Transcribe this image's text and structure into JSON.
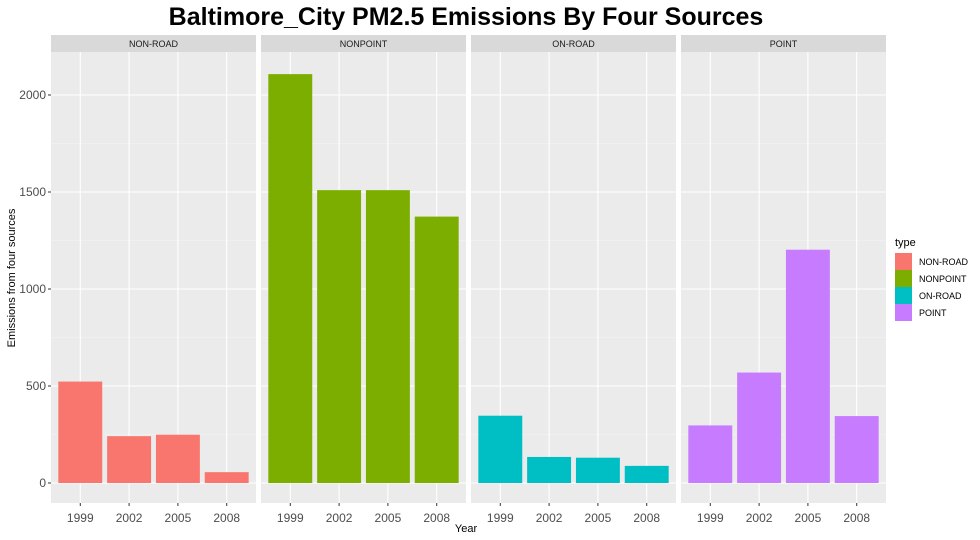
{
  "chart_data": {
    "type": "bar",
    "title": "Baltimore_City PM2.5 Emissions By Four Sources",
    "xlabel": "Year",
    "ylabel": "Emissions from four sources",
    "categories": [
      "1999",
      "2002",
      "2005",
      "2008"
    ],
    "ylim": [
      0,
      2230
    ],
    "yticks": [
      0,
      500,
      1000,
      1500,
      2000
    ],
    "grid": true,
    "legend": {
      "title": "type",
      "placement": "right"
    },
    "panels": [
      {
        "name": "NON-ROAD",
        "color": "#F8766D",
        "values": [
          522.9,
          241.4,
          248.9,
          55.8
        ]
      },
      {
        "name": "NONPOINT",
        "color": "#7CAE00",
        "values": [
          2107.6,
          1509.5,
          1509.5,
          1373.2
        ]
      },
      {
        "name": "ON-ROAD",
        "color": "#00BFC4",
        "values": [
          346.8,
          134.3,
          130.4,
          88.3
        ]
      },
      {
        "name": "POINT",
        "color": "#C77CFF",
        "values": [
          296.8,
          569.3,
          1202.5,
          344.98
        ]
      }
    ]
  }
}
